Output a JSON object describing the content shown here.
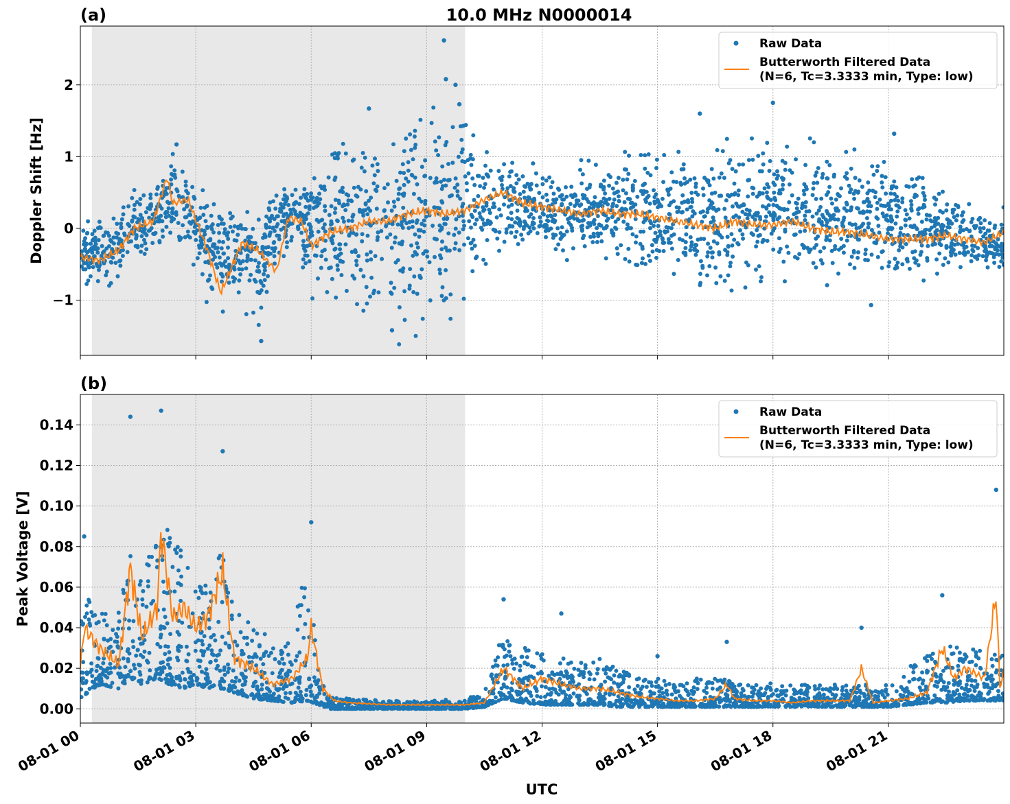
{
  "figure": {
    "title": "10.0 MHz N0000014",
    "xlabel": "UTC"
  },
  "colors": {
    "raw": "#1f77b4",
    "filtered": "#ff7f0e",
    "shade": "#e8e8e8",
    "grid": "#b0b0b0"
  },
  "legend": {
    "raw_label": "Raw Data",
    "filtered_line1": "Butterworth Filtered Data",
    "filtered_line2": "(N=6, Tc=3.3333 min, Type: low)",
    "position": "upper right"
  },
  "chart_data": [
    {
      "type": "scatter",
      "panel_label": "(a)",
      "ylabel": "Doppler Shift [Hz]",
      "xlim": [
        0,
        24
      ],
      "ylim": [
        -1.77,
        2.82
      ],
      "yticks": [
        -1,
        0,
        1,
        2
      ],
      "ytick_labels": [
        "−1",
        "0",
        "1",
        "2"
      ],
      "grid": true,
      "shaded_region": [
        0.3,
        10.0
      ],
      "series": [
        {
          "name": "Raw Data",
          "style": "dots",
          "x": [
            0.0,
            0.5,
            1.0,
            1.4,
            1.9,
            2.4,
            2.8,
            3.3,
            3.7,
            4.2,
            4.6,
            5.1,
            5.5,
            6.0,
            6.5,
            7.0,
            7.5,
            8.0,
            8.5,
            9.0,
            9.5,
            10.0,
            10.5,
            11.0,
            11.5,
            12.0,
            12.5,
            13.0,
            13.5,
            14.0,
            14.5,
            15.0,
            15.5,
            16.0,
            16.5,
            17.0,
            17.5,
            18.0,
            18.5,
            19.0,
            19.5,
            20.0,
            20.5,
            21.0,
            21.5,
            22.0,
            22.5,
            23.0,
            23.5,
            24.0
          ],
          "y_min": [
            -0.8,
            -0.75,
            -0.7,
            -0.4,
            -0.3,
            -0.2,
            -0.5,
            -0.9,
            -1.1,
            -0.9,
            -1.3,
            -0.4,
            -0.2,
            -0.8,
            -1.0,
            -1.1,
            -1.2,
            -1.2,
            -1.2,
            -1.2,
            -1.2,
            -0.8,
            -0.4,
            -0.2,
            -0.2,
            -0.2,
            -0.3,
            -0.3,
            -0.4,
            -0.5,
            -0.5,
            -0.6,
            -0.6,
            -0.7,
            -0.8,
            -0.7,
            -0.6,
            -0.7,
            -0.7,
            -0.8,
            -0.6,
            -0.6,
            -0.6,
            -0.6,
            -0.6,
            -0.6,
            -0.6,
            -0.6,
            -0.6,
            -0.6
          ],
          "y_max": [
            0.1,
            0.05,
            0.2,
            0.6,
            0.5,
            1.1,
            0.8,
            0.3,
            0.2,
            0.4,
            0.3,
            0.5,
            0.5,
            0.8,
            1.0,
            1.2,
            1.3,
            1.4,
            1.5,
            1.5,
            1.5,
            1.5,
            1.0,
            1.0,
            0.8,
            0.8,
            0.7,
            0.8,
            0.9,
            0.9,
            1.0,
            1.0,
            1.0,
            1.0,
            1.1,
            1.1,
            1.1,
            1.2,
            1.1,
            1.0,
            1.0,
            0.9,
            0.9,
            0.8,
            0.7,
            0.6,
            0.5,
            0.4,
            0.3,
            0.2
          ],
          "outliers": [
            [
              9.45,
              2.62
            ],
            [
              9.5,
              2.08
            ],
            [
              9.75,
              2.0
            ],
            [
              7.5,
              1.67
            ],
            [
              18.0,
              1.75
            ],
            [
              21.15,
              1.32
            ],
            [
              16.1,
              1.6
            ],
            [
              4.7,
              -1.57
            ],
            [
              20.55,
              -1.07
            ],
            [
              9.85,
              1.73
            ],
            [
              8.1,
              -1.42
            ],
            [
              2.5,
              1.17
            ]
          ]
        },
        {
          "name": "Butterworth Filtered Data",
          "style": "line",
          "x": [
            0.0,
            0.5,
            1.0,
            1.4,
            1.9,
            2.25,
            2.4,
            2.8,
            3.3,
            3.65,
            4.2,
            4.6,
            5.1,
            5.4,
            5.75,
            6.0,
            6.5,
            7.0,
            7.5,
            8.0,
            8.5,
            9.0,
            9.5,
            10.0,
            10.5,
            11.0,
            11.5,
            12.0,
            12.5,
            13.0,
            13.5,
            14.0,
            14.5,
            15.0,
            15.5,
            16.0,
            16.5,
            17.0,
            17.5,
            18.0,
            18.5,
            19.0,
            19.5,
            20.0,
            20.5,
            21.0,
            21.5,
            22.0,
            22.5,
            23.0,
            23.5,
            24.0
          ],
          "y": [
            -0.4,
            -0.45,
            -0.3,
            0.0,
            0.1,
            0.72,
            0.35,
            0.4,
            -0.3,
            -0.9,
            -0.2,
            -0.3,
            -0.6,
            0.15,
            0.1,
            -0.25,
            -0.05,
            0.0,
            0.1,
            0.1,
            0.2,
            0.25,
            0.2,
            0.25,
            0.4,
            0.5,
            0.35,
            0.3,
            0.25,
            0.2,
            0.25,
            0.2,
            0.2,
            0.15,
            0.1,
            0.05,
            0.0,
            0.1,
            0.05,
            0.05,
            0.1,
            0.0,
            -0.05,
            -0.05,
            -0.1,
            -0.15,
            -0.15,
            -0.15,
            -0.1,
            -0.15,
            -0.2,
            -0.05
          ]
        }
      ]
    },
    {
      "type": "scatter",
      "panel_label": "(b)",
      "ylabel": "Peak Voltage [V]",
      "xlim": [
        0,
        24
      ],
      "ylim": [
        -0.007,
        0.155
      ],
      "yticks": [
        0.0,
        0.02,
        0.04,
        0.06,
        0.08,
        0.1,
        0.12,
        0.14
      ],
      "ytick_labels": [
        "0.00",
        "0.02",
        "0.04",
        "0.06",
        "0.08",
        "0.10",
        "0.12",
        "0.14"
      ],
      "xticks": [
        0,
        3,
        6,
        9,
        12,
        15,
        18,
        21
      ],
      "xtick_labels": [
        "08-01 00",
        "08-01 03",
        "08-01 06",
        "08-01 09",
        "08-01 12",
        "08-01 15",
        "08-01 18",
        "08-01 21"
      ],
      "grid": true,
      "shaded_region": [
        0.3,
        10.0
      ],
      "series": [
        {
          "name": "Raw Data",
          "style": "dots",
          "x": [
            0.0,
            0.5,
            1.0,
            1.3,
            1.6,
            2.0,
            2.3,
            2.7,
            3.0,
            3.3,
            3.7,
            4.0,
            4.5,
            5.0,
            5.5,
            5.9,
            6.2,
            6.5,
            7.0,
            8.0,
            9.0,
            10.0,
            10.5,
            11.0,
            11.5,
            12.0,
            12.5,
            13.0,
            13.5,
            14.0,
            14.5,
            15.0,
            15.5,
            16.0,
            16.5,
            17.0,
            17.5,
            18.0,
            18.5,
            19.0,
            19.5,
            20.0,
            20.5,
            21.0,
            21.5,
            22.0,
            22.5,
            23.0,
            23.5,
            24.0
          ],
          "y_min": [
            0.005,
            0.012,
            0.01,
            0.015,
            0.012,
            0.015,
            0.012,
            0.01,
            0.012,
            0.01,
            0.01,
            0.008,
            0.005,
            0.004,
            0.003,
            0.004,
            0.002,
            0.0,
            0.0,
            0.0,
            0.0,
            0.0,
            0.001,
            0.005,
            0.003,
            0.002,
            0.002,
            0.002,
            0.002,
            0.001,
            0.001,
            0.001,
            0.001,
            0.001,
            0.001,
            0.001,
            0.001,
            0.001,
            0.001,
            0.001,
            0.001,
            0.001,
            0.001,
            0.001,
            0.002,
            0.003,
            0.003,
            0.004,
            0.004,
            0.004
          ],
          "y_max": [
            0.06,
            0.05,
            0.05,
            0.09,
            0.07,
            0.1,
            0.09,
            0.08,
            0.07,
            0.06,
            0.08,
            0.05,
            0.04,
            0.035,
            0.035,
            0.08,
            0.02,
            0.006,
            0.005,
            0.004,
            0.004,
            0.005,
            0.008,
            0.04,
            0.03,
            0.03,
            0.03,
            0.025,
            0.025,
            0.02,
            0.015,
            0.015,
            0.012,
            0.015,
            0.018,
            0.012,
            0.012,
            0.014,
            0.012,
            0.012,
            0.012,
            0.012,
            0.012,
            0.012,
            0.02,
            0.03,
            0.035,
            0.03,
            0.03,
            0.03
          ],
          "outliers": [
            [
              0.1,
              0.085
            ],
            [
              1.3,
              0.144
            ],
            [
              2.1,
              0.147
            ],
            [
              3.7,
              0.127
            ],
            [
              6.0,
              0.092
            ],
            [
              11.0,
              0.054
            ],
            [
              12.5,
              0.047
            ],
            [
              15.0,
              0.026
            ],
            [
              16.8,
              0.033
            ],
            [
              20.3,
              0.04
            ],
            [
              22.4,
              0.056
            ],
            [
              23.8,
              0.108
            ]
          ]
        },
        {
          "name": "Butterworth Filtered Data",
          "style": "line",
          "x": [
            0.0,
            0.1,
            0.5,
            1.0,
            1.3,
            1.6,
            2.0,
            2.1,
            2.4,
            2.7,
            3.0,
            3.3,
            3.7,
            4.0,
            4.5,
            5.0,
            5.5,
            5.9,
            6.0,
            6.3,
            6.6,
            7.0,
            8.0,
            9.0,
            10.0,
            10.5,
            11.0,
            11.5,
            12.0,
            12.5,
            13.0,
            13.5,
            14.0,
            14.5,
            15.0,
            15.5,
            16.0,
            16.5,
            16.8,
            17.0,
            17.5,
            18.0,
            18.5,
            19.0,
            19.5,
            20.0,
            20.3,
            20.6,
            21.0,
            21.5,
            22.0,
            22.4,
            22.7,
            23.0,
            23.5,
            23.8,
            23.9,
            24.0
          ],
          "y": [
            0.02,
            0.04,
            0.03,
            0.022,
            0.07,
            0.035,
            0.05,
            0.088,
            0.045,
            0.05,
            0.04,
            0.045,
            0.068,
            0.025,
            0.02,
            0.012,
            0.015,
            0.025,
            0.04,
            0.01,
            0.004,
            0.003,
            0.002,
            0.002,
            0.002,
            0.003,
            0.02,
            0.01,
            0.015,
            0.012,
            0.01,
            0.01,
            0.008,
            0.006,
            0.005,
            0.004,
            0.004,
            0.005,
            0.012,
            0.005,
            0.004,
            0.004,
            0.003,
            0.004,
            0.004,
            0.004,
            0.02,
            0.003,
            0.004,
            0.005,
            0.008,
            0.03,
            0.015,
            0.02,
            0.015,
            0.057,
            0.01,
            0.018
          ]
        }
      ]
    }
  ]
}
